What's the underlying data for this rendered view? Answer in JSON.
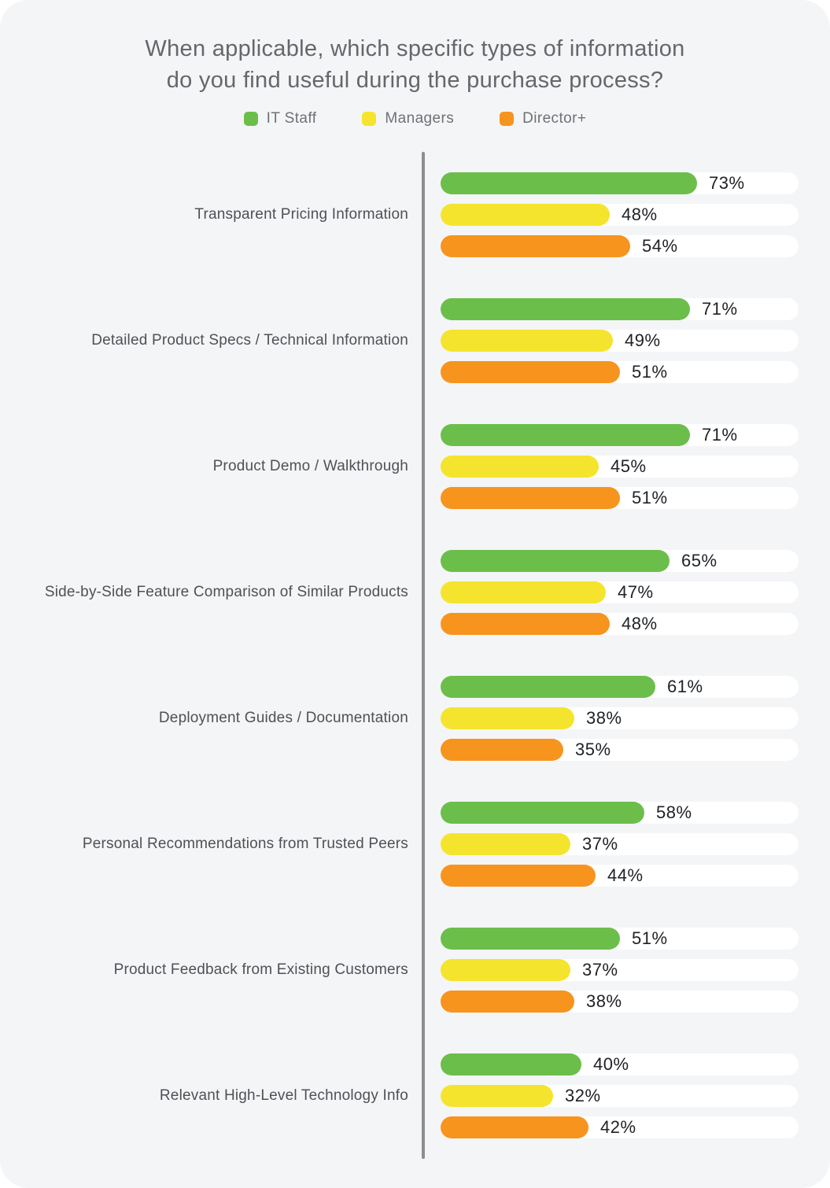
{
  "title": {
    "line1": "When applicable, which specific types of information",
    "line2": "do you find useful during the purchase process?"
  },
  "legend": [
    {
      "label": "IT Staff",
      "color": "#6CBE4B"
    },
    {
      "label": "Managers",
      "color": "#F5E42D"
    },
    {
      "label": "Director+",
      "color": "#F7941E"
    }
  ],
  "chart_data": {
    "type": "bar",
    "orientation": "horizontal",
    "title": "When applicable, which specific types of information do you find useful during the purchase process?",
    "unit": "%",
    "xlim": [
      0,
      100
    ],
    "value_labels": "outside-end",
    "legend_position": "top-center",
    "track_color": "#FFFFFF",
    "axis_line_color": "#8E8E8E",
    "background_color": "#F4F5F7",
    "categories": [
      "Transparent Pricing Information",
      "Detailed Product Specs / Technical Information",
      "Product Demo / Walkthrough",
      "Side-by-Side Feature Comparison of Similar Products",
      "Deployment Guides / Documentation",
      "Personal Recommendations from Trusted Peers",
      "Product Feedback from Existing Customers",
      "Relevant High-Level Technology Info"
    ],
    "series": [
      {
        "name": "IT Staff",
        "color": "#6CBE4B",
        "values": [
          73,
          71,
          71,
          65,
          61,
          58,
          51,
          40
        ]
      },
      {
        "name": "Managers",
        "color": "#F5E42D",
        "values": [
          48,
          49,
          45,
          47,
          38,
          37,
          37,
          32
        ]
      },
      {
        "name": "Director+",
        "color": "#F7941E",
        "values": [
          54,
          51,
          51,
          48,
          35,
          44,
          38,
          42
        ]
      }
    ]
  }
}
